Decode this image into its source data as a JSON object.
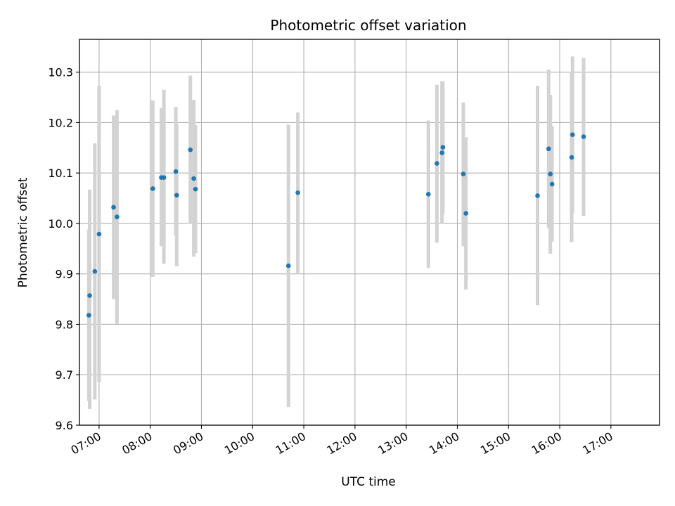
{
  "chart_data": {
    "type": "scatter",
    "title": "Photometric offset variation",
    "xlabel": "UTC time",
    "ylabel": "Photometric offset",
    "x_ticks": [
      "07:00",
      "08:00",
      "09:00",
      "10:00",
      "11:00",
      "12:00",
      "13:00",
      "14:00",
      "15:00",
      "16:00",
      "17:00"
    ],
    "y_ticks": [
      "9.6",
      "9.7",
      "9.8",
      "9.9",
      "10.0",
      "10.1",
      "10.2",
      "10.3"
    ],
    "xlim": [
      "06:37",
      "17:57"
    ],
    "ylim": [
      9.6,
      10.365
    ],
    "grid": true,
    "colors": {
      "point": "#1f77b4",
      "errorbar": "#d3d3d3",
      "grid": "#b0b0b0"
    },
    "series": [
      {
        "points": [
          {
            "x": "06:48",
            "y": 9.818,
            "low": 9.648,
            "high": 9.988
          },
          {
            "x": "06:49",
            "y": 9.857,
            "low": 9.632,
            "high": 10.067
          },
          {
            "x": "06:55",
            "y": 9.905,
            "low": 9.651,
            "high": 10.159
          },
          {
            "x": "07:00",
            "y": 9.979,
            "low": 9.685,
            "high": 10.273
          },
          {
            "x": "07:17",
            "y": 10.032,
            "low": 9.85,
            "high": 10.214
          },
          {
            "x": "07:21",
            "y": 10.013,
            "low": 9.801,
            "high": 10.225
          },
          {
            "x": "08:03",
            "y": 10.069,
            "low": 9.894,
            "high": 10.244
          },
          {
            "x": "08:13",
            "y": 10.091,
            "low": 9.955,
            "high": 10.229
          },
          {
            "x": "08:16",
            "y": 10.091,
            "low": 9.92,
            "high": 10.265
          },
          {
            "x": "08:30",
            "y": 10.103,
            "low": 9.976,
            "high": 10.231
          },
          {
            "x": "08:31",
            "y": 10.056,
            "low": 9.915,
            "high": 10.197
          },
          {
            "x": "08:47",
            "y": 10.146,
            "low": 9.999,
            "high": 10.293
          },
          {
            "x": "08:51",
            "y": 10.089,
            "low": 9.934,
            "high": 10.245
          },
          {
            "x": "08:53",
            "y": 10.068,
            "low": 9.941,
            "high": 10.195
          },
          {
            "x": "10:42",
            "y": 9.916,
            "low": 9.636,
            "high": 10.196
          },
          {
            "x": "10:53",
            "y": 10.061,
            "low": 9.902,
            "high": 10.22
          },
          {
            "x": "13:26",
            "y": 10.058,
            "low": 9.912,
            "high": 10.204
          },
          {
            "x": "13:36",
            "y": 10.119,
            "low": 9.962,
            "high": 10.275
          },
          {
            "x": "13:42",
            "y": 10.14,
            "low": 10.0,
            "high": 10.282
          },
          {
            "x": "13:43",
            "y": 10.151,
            "low": 10.02,
            "high": 10.282
          },
          {
            "x": "14:07",
            "y": 10.098,
            "low": 9.955,
            "high": 10.24
          },
          {
            "x": "14:10",
            "y": 10.02,
            "low": 9.869,
            "high": 10.171
          },
          {
            "x": "15:34",
            "y": 10.055,
            "low": 9.838,
            "high": 10.273
          },
          {
            "x": "15:47",
            "y": 10.148,
            "low": 9.991,
            "high": 10.305
          },
          {
            "x": "15:49",
            "y": 10.098,
            "low": 9.94,
            "high": 10.255
          },
          {
            "x": "15:51",
            "y": 10.078,
            "low": 9.964,
            "high": 10.193
          },
          {
            "x": "16:14",
            "y": 10.131,
            "low": 9.963,
            "high": 10.299
          },
          {
            "x": "16:15",
            "y": 10.176,
            "low": 10.021,
            "high": 10.331
          },
          {
            "x": "16:28",
            "y": 10.172,
            "low": 10.015,
            "high": 10.328
          }
        ]
      }
    ]
  }
}
